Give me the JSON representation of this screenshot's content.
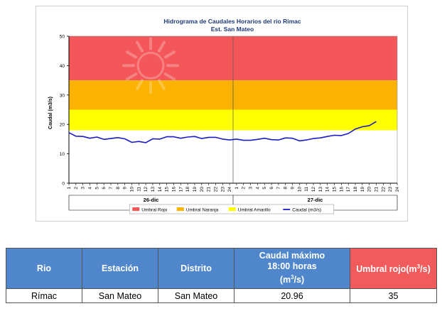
{
  "chart_data": {
    "type": "line",
    "title": "Hidrograma de Caudales Horarios del río Rimac",
    "subtitle": "Est. San Mateo",
    "ylabel": "Caudal (m3/s)",
    "ylim": [
      0,
      50
    ],
    "yticks": [
      0,
      10,
      20,
      30,
      40,
      50
    ],
    "days": [
      {
        "label": "26-dic",
        "hours": [
          "1",
          "2",
          "3",
          "4",
          "5",
          "6",
          "7",
          "8",
          "9",
          "10",
          "11",
          "12",
          "13",
          "14",
          "15",
          "16",
          "17",
          "18",
          "19",
          "20",
          "21",
          "22",
          "23",
          "24"
        ]
      },
      {
        "label": "27-dic",
        "hours": [
          "1",
          "2",
          "3",
          "4",
          "5",
          "6",
          "7",
          "8",
          "9",
          "10",
          "11",
          "12",
          "13",
          "14",
          "15",
          "16",
          "17",
          "18",
          "19",
          "20",
          "21",
          "22",
          "23",
          "24"
        ]
      }
    ],
    "thresholds": [
      {
        "name": "Umbral Rojo",
        "from": 35,
        "to": 50,
        "color": "#f4575a"
      },
      {
        "name": "Umbral Naranja",
        "from": 25,
        "to": 35,
        "color": "#fbb200"
      },
      {
        "name": "Umbral Amarillo",
        "from": 18,
        "to": 25,
        "color": "#ffff00"
      }
    ],
    "series": [
      {
        "name": "Caudal (m3/s)",
        "color": "#1c1cc4",
        "values": [
          17.2,
          16.0,
          15.9,
          15.3,
          15.7,
          14.9,
          15.2,
          15.5,
          15.1,
          13.9,
          14.2,
          13.8,
          15.1,
          15.0,
          15.8,
          15.8,
          15.3,
          15.7,
          15.9,
          15.2,
          15.6,
          15.6,
          15.0,
          14.7,
          15.0,
          14.6,
          14.6,
          14.9,
          15.3,
          14.8,
          14.7,
          15.4,
          15.3,
          14.4,
          14.7,
          15.2,
          15.4,
          15.9,
          16.3,
          16.2,
          16.9,
          18.4,
          19.2,
          19.6,
          20.96
        ]
      }
    ],
    "legend_position": "bottom"
  },
  "table": {
    "headers": [
      {
        "key": "rio",
        "label": "Rio"
      },
      {
        "key": "estacion",
        "label": "Estación"
      },
      {
        "key": "distrito",
        "label": "Distrito"
      },
      {
        "key": "caudal",
        "label_line1": "Caudal máximo",
        "label_line2": "18:00 horas",
        "unit_pre": "(m",
        "unit_sup": "3",
        "unit_post": "/s)"
      },
      {
        "key": "umbral",
        "label_pre": "Umbral rojo(m",
        "unit_sup": "3",
        "label_post": "/s)"
      }
    ],
    "row": {
      "rio": "Rímac",
      "estacion": "San Mateo",
      "distrito": "San Mateo",
      "caudal": "20.96",
      "umbral": "35"
    }
  }
}
